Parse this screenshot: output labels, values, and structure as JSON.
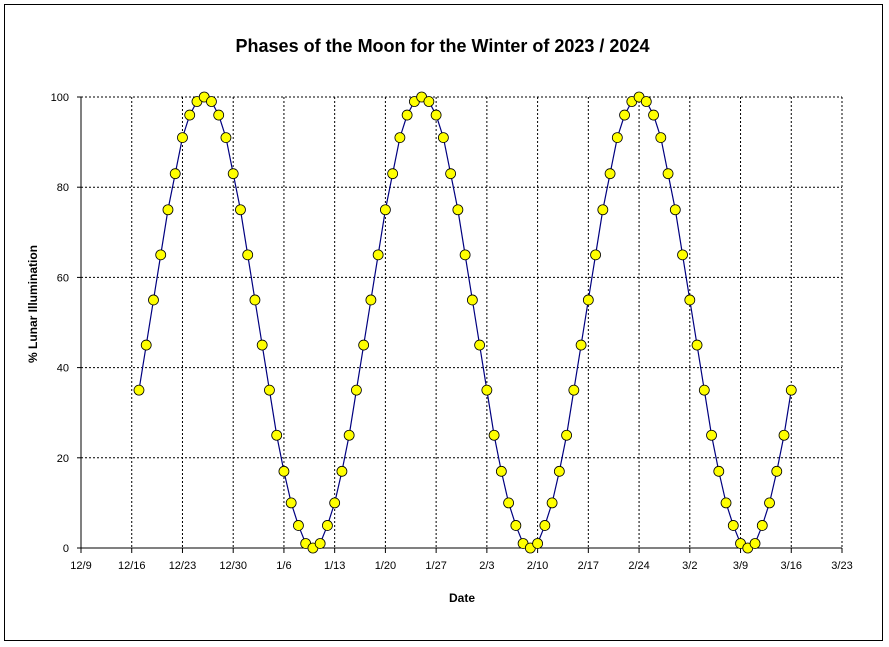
{
  "chart_data": {
    "type": "line",
    "title": "Phases of the Moon for the Winter of 2023 / 2024",
    "xlabel": "Date",
    "ylabel": "% Lunar Illumination",
    "ylim": [
      0,
      100
    ],
    "y_ticks": [
      "0",
      "20",
      "40",
      "60",
      "80",
      "100"
    ],
    "x_ticks": [
      "12/9",
      "12/16",
      "12/23",
      "12/30",
      "1/6",
      "1/13",
      "1/20",
      "1/27",
      "2/3",
      "2/10",
      "2/17",
      "2/24",
      "3/2",
      "3/9",
      "3/16",
      "3/23"
    ],
    "grid": true,
    "colors": {
      "line": "#000080",
      "marker_fill": "#ffff00",
      "marker_edge": "#000000",
      "grid": "#000000"
    },
    "series": [
      {
        "x": [
          "2023-12-17",
          "2023-12-18",
          "2023-12-19",
          "2023-12-20",
          "2023-12-21",
          "2023-12-22",
          "2023-12-23",
          "2023-12-24",
          "2023-12-25",
          "2023-12-26",
          "2023-12-27",
          "2023-12-28",
          "2023-12-29",
          "2023-12-30",
          "2023-12-31",
          "2024-01-01",
          "2024-01-02",
          "2024-01-03",
          "2024-01-04",
          "2024-01-05",
          "2024-01-06",
          "2024-01-07",
          "2024-01-08",
          "2024-01-09",
          "2024-01-10",
          "2024-01-11",
          "2024-01-12",
          "2024-01-13",
          "2024-01-14",
          "2024-01-15",
          "2024-01-16",
          "2024-01-17",
          "2024-01-18",
          "2024-01-19",
          "2024-01-20",
          "2024-01-21",
          "2024-01-22",
          "2024-01-23",
          "2024-01-24",
          "2024-01-25",
          "2024-01-26",
          "2024-01-27",
          "2024-01-28",
          "2024-01-29",
          "2024-01-30",
          "2024-01-31",
          "2024-02-01",
          "2024-02-02",
          "2024-02-03",
          "2024-02-04",
          "2024-02-05",
          "2024-02-06",
          "2024-02-07",
          "2024-02-08",
          "2024-02-09",
          "2024-02-10",
          "2024-02-11",
          "2024-02-12",
          "2024-02-13",
          "2024-02-14",
          "2024-02-15",
          "2024-02-16",
          "2024-02-17",
          "2024-02-18",
          "2024-02-19",
          "2024-02-20",
          "2024-02-21",
          "2024-02-22",
          "2024-02-23",
          "2024-02-24",
          "2024-02-25",
          "2024-02-26",
          "2024-02-27",
          "2024-02-28",
          "2024-02-29",
          "2024-03-01",
          "2024-03-02",
          "2024-03-03",
          "2024-03-04",
          "2024-03-05",
          "2024-03-06",
          "2024-03-07",
          "2024-03-08",
          "2024-03-09",
          "2024-03-10",
          "2024-03-11",
          "2024-03-12",
          "2024-03-13",
          "2024-03-14",
          "2024-03-15",
          "2024-03-16"
        ],
        "values": [
          35,
          45,
          55,
          65,
          75,
          83,
          91,
          96,
          99,
          100,
          99,
          96,
          91,
          83,
          75,
          65,
          55,
          45,
          35,
          25,
          17,
          10,
          5,
          1,
          0,
          1,
          5,
          10,
          17,
          25,
          35,
          45,
          55,
          65,
          75,
          83,
          91,
          96,
          99,
          100,
          99,
          96,
          91,
          83,
          75,
          65,
          55,
          45,
          35,
          25,
          17,
          10,
          5,
          1,
          0,
          1,
          5,
          10,
          17,
          25,
          35,
          45,
          55,
          65,
          75,
          83,
          91,
          96,
          99,
          100,
          99,
          96,
          91,
          83,
          75,
          65,
          55,
          45,
          35,
          25,
          17,
          10,
          5,
          1,
          0,
          1,
          5,
          10,
          17,
          25,
          35
        ]
      }
    ]
  }
}
